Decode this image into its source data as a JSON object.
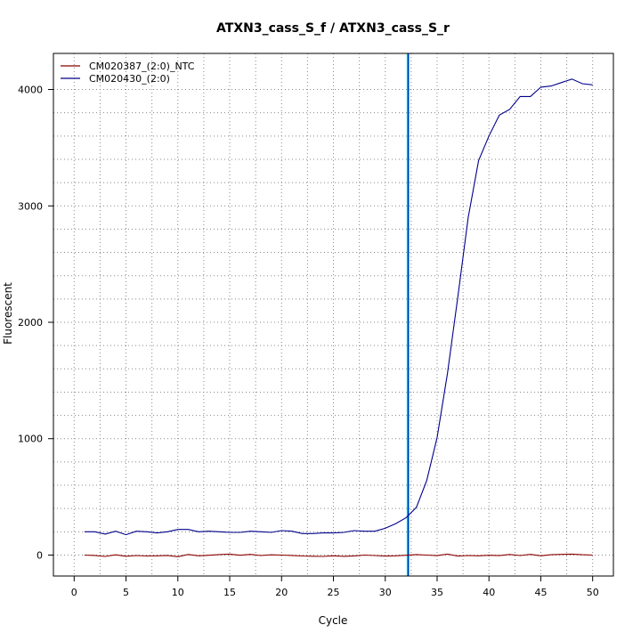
{
  "chart_data": {
    "type": "line",
    "title": "ATXN3_cass_S_f / ATXN3_cass_S_r",
    "xlabel": "Cycle",
    "ylabel": "Fluorescent",
    "xlim": [
      -2,
      52
    ],
    "ylim": [
      -180,
      4310
    ],
    "x_ticks": [
      0,
      5,
      10,
      15,
      20,
      25,
      30,
      35,
      40,
      45,
      50
    ],
    "y_ticks": [
      0,
      1000,
      2000,
      3000,
      4000
    ],
    "grid": true,
    "legend_position": "top-left",
    "threshold_cycle": 32.2,
    "series": [
      {
        "name": "CM020387_(2:0)_NTC",
        "color": "#8b0000",
        "x": [
          1,
          2,
          3,
          4,
          5,
          6,
          7,
          8,
          9,
          10,
          11,
          12,
          13,
          14,
          15,
          16,
          17,
          18,
          19,
          20,
          21,
          22,
          23,
          24,
          25,
          26,
          27,
          28,
          29,
          30,
          31,
          32,
          33,
          34,
          35,
          36,
          37,
          38,
          39,
          40,
          41,
          42,
          43,
          44,
          45,
          46,
          47,
          48,
          49,
          50
        ],
        "values": [
          0,
          -3,
          -12,
          2,
          -10,
          -4,
          -8,
          -6,
          -3,
          -14,
          5,
          -6,
          -2,
          4,
          8,
          -2,
          6,
          -4,
          2,
          0,
          -3,
          -8,
          -10,
          -12,
          -6,
          -11,
          -7,
          0,
          -4,
          -9,
          -6,
          -2,
          4,
          0,
          -5,
          8,
          -9,
          -4,
          -6,
          -2,
          -5,
          5,
          -4,
          6,
          -6,
          3,
          6,
          8,
          3,
          0
        ],
        "label": "CM020387_(2:0)_NTC"
      },
      {
        "name": "CM020430_(2:0)",
        "color": "#00008b",
        "x": [
          1,
          2,
          3,
          4,
          5,
          6,
          7,
          8,
          9,
          10,
          11,
          12,
          13,
          14,
          15,
          16,
          17,
          18,
          19,
          20,
          21,
          22,
          23,
          24,
          25,
          26,
          27,
          28,
          29,
          30,
          31,
          32,
          33,
          34,
          35,
          36,
          37,
          38,
          39,
          40,
          41,
          42,
          43,
          44,
          45,
          46,
          47,
          48,
          49,
          50
        ],
        "values": [
          200,
          200,
          180,
          205,
          175,
          205,
          200,
          190,
          200,
          220,
          220,
          200,
          205,
          200,
          195,
          195,
          205,
          200,
          195,
          210,
          205,
          185,
          185,
          190,
          190,
          195,
          210,
          205,
          205,
          230,
          270,
          320,
          410,
          640,
          1010,
          1560,
          2220,
          2900,
          3390,
          3600,
          3780,
          3830,
          3940,
          3940,
          4020,
          4030,
          4060,
          4090,
          4050,
          4040
        ],
        "label": "CM020430_(2:0)"
      }
    ]
  }
}
